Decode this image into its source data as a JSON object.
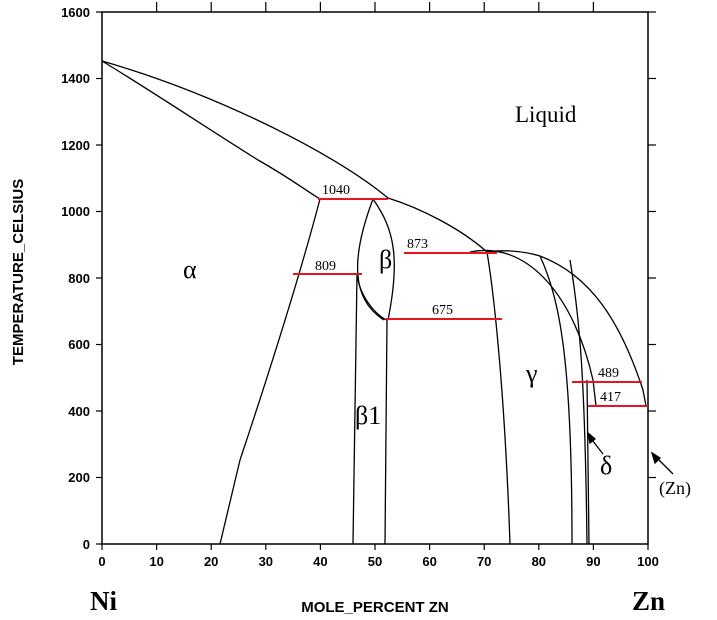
{
  "axes": {
    "x_label": "MOLE_PERCENT ZN",
    "y_label": "TEMPERATURE_CELSIUS",
    "x_ticks": [
      "0",
      "10",
      "20",
      "30",
      "40",
      "50",
      "60",
      "70",
      "80",
      "90",
      "100"
    ],
    "y_ticks": [
      "0",
      "200",
      "400",
      "600",
      "800",
      "1000",
      "1200",
      "1400",
      "1600"
    ],
    "left_element": "Ni",
    "right_element": "Zn"
  },
  "phases": {
    "liquid": "Liquid",
    "alpha": "α",
    "beta": "β",
    "beta1": "β1",
    "gamma": "γ",
    "delta": "δ",
    "zn": "(Zn)"
  },
  "isotherms": {
    "t1040": "1040",
    "t873": "873",
    "t809": "809",
    "t675": "675",
    "t489": "489",
    "t417": "417"
  },
  "colors": {
    "isotherm": "#e8141e",
    "lines": "#000000"
  }
}
